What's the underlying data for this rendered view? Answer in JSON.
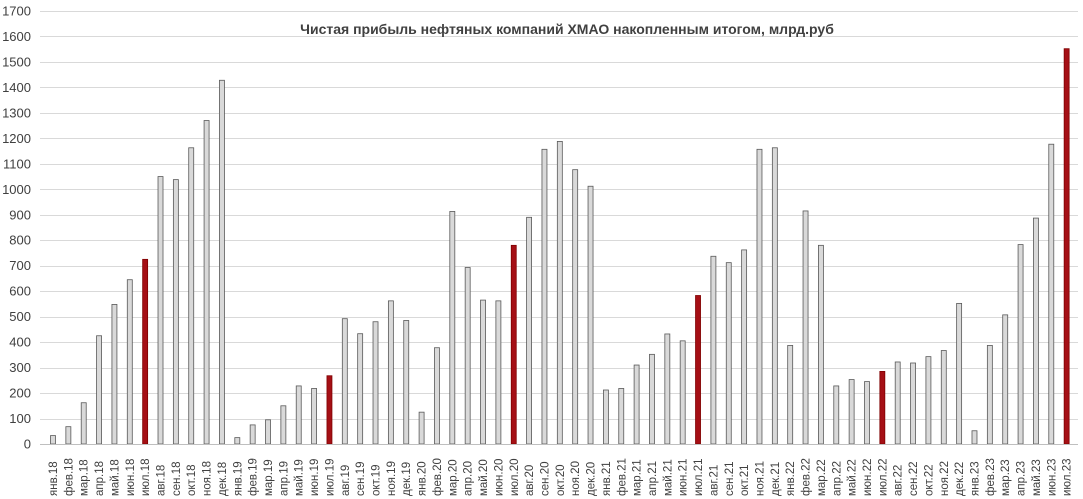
{
  "chart_data": {
    "type": "bar",
    "title": "Чистая прибыль нефтяных компаний ХМАО накопленным итогом, млрд.руб",
    "xlabel": "",
    "ylabel": "",
    "ylim": [
      0,
      1700
    ],
    "yticks": [
      0,
      100,
      200,
      300,
      400,
      500,
      600,
      700,
      800,
      900,
      1000,
      1100,
      1200,
      1300,
      1400,
      1500,
      1600,
      1700
    ],
    "grid": true,
    "colors": {
      "default_bar": "#d9d9d9",
      "default_border": "#595959",
      "highlight_bar": "#a50f15",
      "highlight_border": "#7f0000"
    },
    "categories": [
      "янв.18",
      "фев.18",
      "мар.18",
      "апр.18",
      "май.18",
      "июн.18",
      "июл.18",
      "авг.18",
      "сен.18",
      "окт.18",
      "ноя.18",
      "дек.18",
      "янв.19",
      "фев.19",
      "мар.19",
      "апр.19",
      "май.19",
      "июн.19",
      "июл.19",
      "авг.19",
      "сен.19",
      "окт.19",
      "ноя.19",
      "дек.19",
      "янв.20",
      "фев.20",
      "мар.20",
      "апр.20",
      "май.20",
      "июн.20",
      "июл.20",
      "авг.20",
      "сен.20",
      "окт.20",
      "ноя.20",
      "дек.20",
      "янв.21",
      "фев.21",
      "мар.21",
      "апр.21",
      "май.21",
      "июн.21",
      "июл.21",
      "авг.21",
      "сен.21",
      "окт.21",
      "ноя.21",
      "дек.21",
      "янв.22",
      "фев.22",
      "мар.22",
      "апр.22",
      "май.22",
      "июн.22",
      "июл.22",
      "авг.22",
      "сен.22",
      "окт.22",
      "ноя.22",
      "дек.22",
      "янв.23",
      "фев.23",
      "мар.23",
      "апр.23",
      "май.23",
      "июн.23",
      "июл.23"
    ],
    "values": [
      33,
      68,
      162,
      425,
      548,
      645,
      725,
      1050,
      1038,
      1163,
      1270,
      1428,
      25,
      75,
      95,
      150,
      228,
      218,
      268,
      492,
      433,
      480,
      562,
      485,
      125,
      378,
      913,
      693,
      565,
      562,
      780,
      890,
      1157,
      1188,
      1077,
      1012,
      212,
      218,
      310,
      352,
      432,
      405,
      583,
      737,
      712,
      762,
      1157,
      1163,
      387,
      915,
      780,
      228,
      253,
      245,
      285,
      322,
      318,
      343,
      367,
      552,
      52,
      387,
      507,
      783,
      887,
      1177,
      1552
    ],
    "highlighted": [
      "июл.18",
      "июл.19",
      "июл.20",
      "июл.21",
      "июл.22",
      "июл.23"
    ]
  }
}
